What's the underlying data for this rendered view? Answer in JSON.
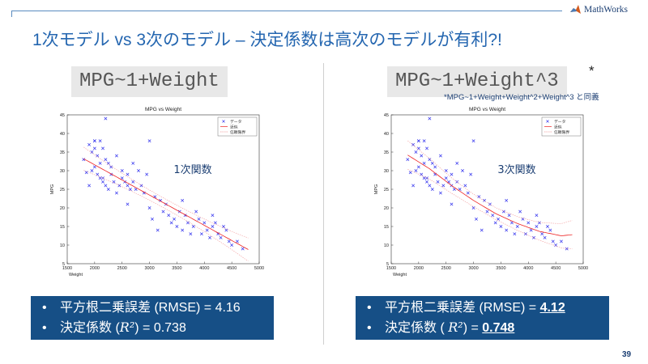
{
  "header": {
    "logo_text": "MathWorks",
    "logo_icon": "mathworks-membrane-icon"
  },
  "slide": {
    "title": "1次モデル vs 3次のモデル – 決定係数は高次のモデルが有利?!",
    "page_number": "39",
    "colors": {
      "title": "#2466b0",
      "box": "#164f86",
      "scatter": "#3333ee",
      "fit": "#ee2222",
      "bounds": "#f29a9a"
    }
  },
  "left": {
    "formula": "MPG~1+Weight",
    "function_label": "1次関数",
    "rmse_text": "平方根二乗誤差 (RMSE) = 4.16",
    "r2_label": "決定係数 (",
    "r2_symbol": "R²",
    "r2_tail": ") = ",
    "r2_value": "0.738",
    "bullet": "•"
  },
  "right": {
    "formula": "MPG~1+Weight^3",
    "star": "*",
    "note": "*MPG~1+Weight+Weight^2+Weight^3 と同義",
    "function_label": "3次関数",
    "rmse_prefix": "平方根二乗誤差 (RMSE) = ",
    "rmse_value": "4.12",
    "r2_label": "決定係数 ( ",
    "r2_symbol": "R²",
    "r2_tail": ") = ",
    "r2_value": "0.748",
    "bullet": "•"
  },
  "chart_data": [
    {
      "type": "scatter",
      "title": "MPG vs Weight",
      "xlabel": "Weight",
      "ylabel": "MPG",
      "xlim": [
        1500,
        5000
      ],
      "ylim": [
        5,
        45
      ],
      "xticks": [
        1500,
        2000,
        2500,
        3000,
        3500,
        4000,
        4500,
        5000
      ],
      "yticks": [
        5,
        10,
        15,
        20,
        25,
        30,
        35,
        40,
        45
      ],
      "grid": false,
      "legend_position": "top-right",
      "legend": [
        "データ",
        "近似",
        "信頼限界"
      ],
      "fit": {
        "degree": 1,
        "x": [
          1800,
          4800
        ],
        "y": [
          33.2,
          8.8
        ]
      },
      "bounds_offset": 1.3
    },
    {
      "type": "scatter",
      "title": "MPG vs Weight",
      "xlabel": "Weight",
      "ylabel": "MPG",
      "xlim": [
        1500,
        5000
      ],
      "ylim": [
        5,
        45
      ],
      "xticks": [
        1500,
        2000,
        2500,
        3000,
        3500,
        4000,
        4500,
        5000
      ],
      "yticks": [
        5,
        10,
        15,
        20,
        25,
        30,
        35,
        40,
        45
      ],
      "grid": false,
      "legend_position": "top-right",
      "legend": [
        "データ",
        "近似",
        "信頼限界"
      ],
      "fit": {
        "degree": 3,
        "x": [
          1800,
          2200,
          2600,
          3000,
          3400,
          3800,
          4200,
          4600,
          4800
        ],
        "y": [
          34.2,
          30.5,
          26.0,
          22.0,
          18.5,
          15.8,
          13.7,
          12.5,
          12.8
        ]
      },
      "bounds_offset": 1.6
    }
  ],
  "scatter_points": {
    "x": [
      1800,
      1850,
      1900,
      1950,
      1950,
      2000,
      2000,
      2000,
      2050,
      2050,
      2100,
      2100,
      2100,
      2150,
      2150,
      2200,
      2200,
      2250,
      2250,
      2300,
      2300,
      2350,
      2400,
      2400,
      2450,
      2500,
      2500,
      2550,
      2600,
      2600,
      2650,
      2700,
      2700,
      2750,
      2800,
      2850,
      2900,
      2950,
      3000,
      3050,
      3100,
      3150,
      3200,
      3250,
      3300,
      3350,
      3400,
      3450,
      3500,
      3550,
      3600,
      3650,
      3700,
      3750,
      3800,
      3850,
      3900,
      3950,
      4000,
      4050,
      4100,
      4150,
      4200,
      4250,
      4300,
      4350,
      4400,
      4450,
      4500,
      4600,
      4700,
      1900,
      2000,
      2200,
      2600,
      3000,
      2150,
      3600,
      4150
    ],
    "y": [
      33,
      29.5,
      26,
      30,
      35,
      36,
      31,
      38,
      29,
      34,
      32,
      38,
      28,
      27,
      36,
      26,
      33,
      32,
      25,
      31,
      29,
      27,
      34,
      24,
      26,
      28,
      30,
      27,
      26,
      29,
      25,
      32,
      27,
      25,
      30,
      26,
      24,
      29,
      20,
      17,
      23,
      14,
      22,
      19,
      21,
      18,
      16,
      17,
      15,
      19,
      14,
      18,
      16,
      13,
      15,
      19,
      17,
      13,
      16,
      14,
      12,
      15,
      16,
      13,
      12,
      15,
      14,
      11,
      10,
      11,
      9,
      37,
      38,
      44,
      21,
      38,
      28,
      22,
      18
    ]
  }
}
